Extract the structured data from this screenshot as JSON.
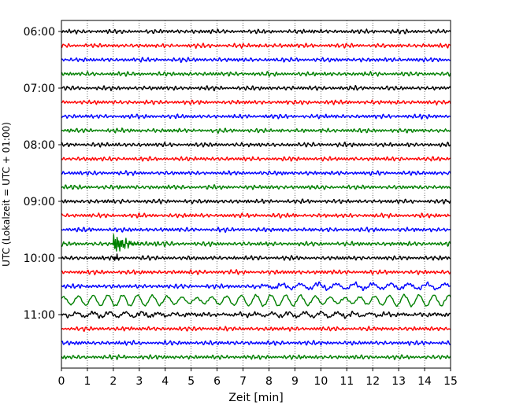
{
  "chart_data": {
    "type": "line",
    "title": "",
    "xlabel": "Zeit  [min]",
    "ylabel": "UTC (Lokalzeit = UTC + 01:00)",
    "xlim": [
      0,
      15
    ],
    "x_ticks": [
      "0",
      "1",
      "2",
      "3",
      "4",
      "5",
      "6",
      "7",
      "8",
      "9",
      "10",
      "11",
      "12",
      "13",
      "14",
      "15"
    ],
    "y_tick_labels": [
      "06:00",
      "07:00",
      "08:00",
      "09:00",
      "10:00",
      "11:00"
    ],
    "grid": "vertical dotted at each minute",
    "trace_interval_minutes": 15,
    "color_cycle": [
      "#000000",
      "#ff0000",
      "#0000ff",
      "#008000"
    ],
    "traces": [
      {
        "time": "06:00",
        "color": "#000000",
        "event": "noise"
      },
      {
        "time": "06:15",
        "color": "#ff0000",
        "event": "noise"
      },
      {
        "time": "06:30",
        "color": "#0000ff",
        "event": "noise"
      },
      {
        "time": "06:45",
        "color": "#008000",
        "event": "noise"
      },
      {
        "time": "07:00",
        "color": "#000000",
        "event": "noise"
      },
      {
        "time": "07:15",
        "color": "#ff0000",
        "event": "noise"
      },
      {
        "time": "07:30",
        "color": "#0000ff",
        "event": "noise"
      },
      {
        "time": "07:45",
        "color": "#008000",
        "event": "noise"
      },
      {
        "time": "08:00",
        "color": "#000000",
        "event": "noise"
      },
      {
        "time": "08:15",
        "color": "#ff0000",
        "event": "noise"
      },
      {
        "time": "08:30",
        "color": "#0000ff",
        "event": "noise"
      },
      {
        "time": "08:45",
        "color": "#008000",
        "event": "noise"
      },
      {
        "time": "09:00",
        "color": "#000000",
        "event": "noise"
      },
      {
        "time": "09:15",
        "color": "#ff0000",
        "event": "noise"
      },
      {
        "time": "09:30",
        "color": "#0000ff",
        "event": "noise"
      },
      {
        "time": "09:45",
        "color": "#008000",
        "event": "local quake at ~2.1 min"
      },
      {
        "time": "10:00",
        "color": "#000000",
        "event": "spike at ~2.1 min"
      },
      {
        "time": "10:15",
        "color": "#ff0000",
        "event": "noise"
      },
      {
        "time": "10:30",
        "color": "#0000ff",
        "event": "long-period waves from ~7 min"
      },
      {
        "time": "10:45",
        "color": "#008000",
        "event": "large surface waves"
      },
      {
        "time": "11:00",
        "color": "#000000",
        "event": "long-period coda"
      },
      {
        "time": "11:15",
        "color": "#ff0000",
        "event": "noise"
      },
      {
        "time": "11:30",
        "color": "#0000ff",
        "event": "noise"
      },
      {
        "time": "11:45",
        "color": "#008000",
        "event": "noise"
      }
    ]
  }
}
